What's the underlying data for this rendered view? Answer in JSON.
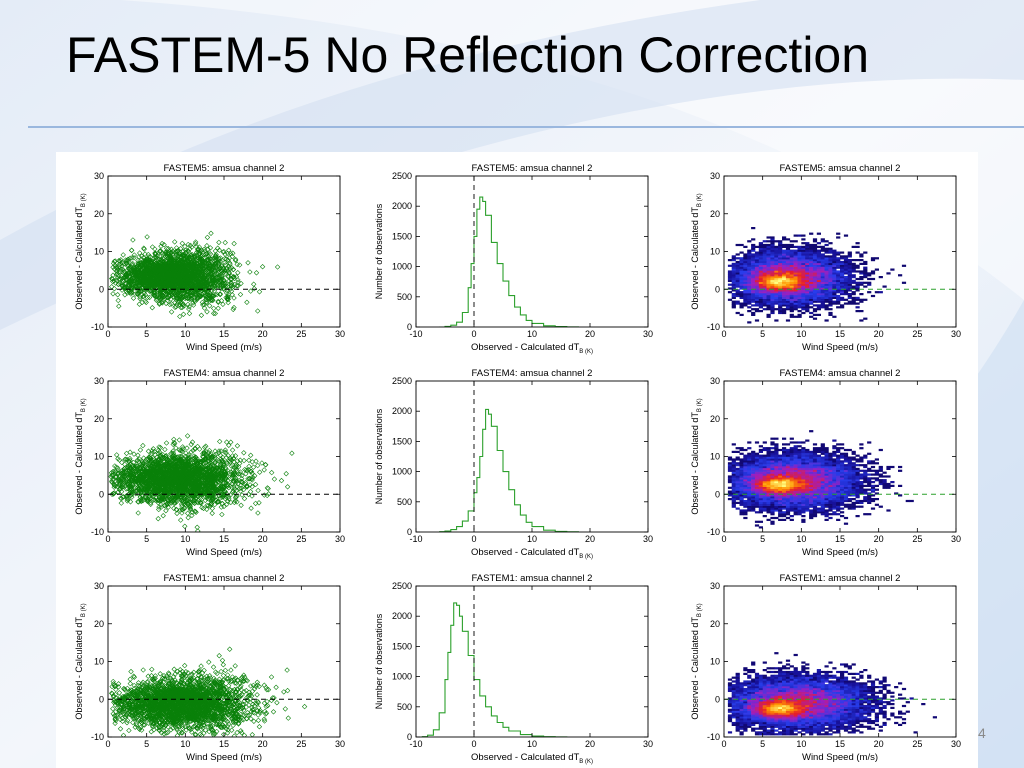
{
  "slide": {
    "title": "FASTEM-5 No Reflection Correction",
    "page_number": "4"
  },
  "colors": {
    "scatter": "#0a800a",
    "histogram": "#2ca02c",
    "title_rule": "#9ab7de"
  },
  "chart_data": [
    {
      "panel": "scatter",
      "type": "scatter",
      "model": "FASTEM5",
      "title": "FASTEM5: amsua channel 2",
      "xlabel": "Wind Speed (m/s)",
      "ylabel": "Observed - Calculated dT_B (K)",
      "xlim": [
        0,
        30
      ],
      "ylim": [
        -10,
        30
      ],
      "xticks": [
        0,
        5,
        10,
        15,
        20,
        25,
        30
      ],
      "yticks": [
        -10,
        0,
        10,
        20,
        30
      ],
      "reference_line_y": 0,
      "cloud": {
        "x_mean": 8.5,
        "x_sd": 3.6,
        "y_mean": 3.5,
        "y_sd": 3.4,
        "x_max": 23,
        "points": 2600
      }
    },
    {
      "panel": "histogram",
      "type": "line",
      "model": "FASTEM5",
      "title": "FASTEM5: amsua channel 2",
      "xlabel": "Observed - Calculated dT_B (K)",
      "ylabel": "Number of observations",
      "xlim": [
        -10,
        30
      ],
      "ylim": [
        0,
        2500
      ],
      "xticks": [
        -10,
        0,
        10,
        20,
        30
      ],
      "yticks": [
        0,
        500,
        1000,
        1500,
        2000,
        2500
      ],
      "reference_line_x": 0,
      "x": [
        -6,
        -5,
        -4,
        -3,
        -2,
        -1,
        -0.5,
        0,
        0.5,
        1,
        1.5,
        2,
        3,
        4,
        5,
        6,
        7,
        8,
        9,
        10,
        12,
        14,
        16,
        18
      ],
      "y": [
        0,
        10,
        30,
        80,
        240,
        650,
        1050,
        1500,
        1950,
        2150,
        2080,
        1850,
        1400,
        1050,
        760,
        520,
        330,
        200,
        110,
        60,
        20,
        8,
        2,
        0
      ]
    },
    {
      "panel": "density",
      "type": "heatmap",
      "model": "FASTEM5",
      "title": "FASTEM5: amsua channel 2",
      "xlabel": "Wind Speed (m/s)",
      "ylabel": "Observed - Calculated dT_B (K)",
      "xlim": [
        0,
        30
      ],
      "ylim": [
        -10,
        30
      ],
      "xticks": [
        0,
        5,
        10,
        15,
        20,
        25,
        30
      ],
      "yticks": [
        -10,
        0,
        10,
        20,
        30
      ],
      "reference_line_y": 0,
      "cloud": {
        "x_mean": 8.5,
        "x_sd": 3.6,
        "y_mean": 3.0,
        "y_sd": 3.4,
        "peak_x": 7,
        "peak_y": 2,
        "x_max": 24
      }
    },
    {
      "panel": "scatter",
      "type": "scatter",
      "model": "FASTEM4",
      "title": "FASTEM4: amsua channel 2",
      "xlabel": "Wind Speed (m/s)",
      "ylabel": "Observed - Calculated dT_B (K)",
      "xlim": [
        0,
        30
      ],
      "ylim": [
        -10,
        30
      ],
      "xticks": [
        0,
        5,
        10,
        15,
        20,
        25,
        30
      ],
      "yticks": [
        -10,
        0,
        10,
        20,
        30
      ],
      "reference_line_y": 0,
      "cloud": {
        "x_mean": 9.0,
        "x_sd": 4.2,
        "y_mean": 4.0,
        "y_sd": 3.5,
        "x_max": 26,
        "points": 2600
      }
    },
    {
      "panel": "histogram",
      "type": "line",
      "model": "FASTEM4",
      "title": "FASTEM4: amsua channel 2",
      "xlabel": "Observed - Calculated dT_B (K)",
      "ylabel": "Number of observations",
      "xlim": [
        -10,
        30
      ],
      "ylim": [
        0,
        2500
      ],
      "xticks": [
        -10,
        0,
        10,
        20,
        30
      ],
      "yticks": [
        0,
        500,
        1000,
        1500,
        2000,
        2500
      ],
      "reference_line_x": 0,
      "x": [
        -6,
        -5,
        -4,
        -3,
        -2,
        -1,
        0,
        0.5,
        1,
        1.5,
        2,
        2.5,
        3,
        4,
        5,
        6,
        7,
        8,
        9,
        10,
        12,
        14,
        16,
        18
      ],
      "y": [
        5,
        15,
        40,
        90,
        180,
        350,
        650,
        900,
        1250,
        1700,
        2030,
        1950,
        1750,
        1350,
        1000,
        700,
        450,
        280,
        160,
        90,
        30,
        10,
        3,
        0
      ]
    },
    {
      "panel": "density",
      "type": "heatmap",
      "model": "FASTEM4",
      "title": "FASTEM4: amsua channel 2",
      "xlabel": "Wind Speed (m/s)",
      "ylabel": "Observed - Calculated dT_B (K)",
      "xlim": [
        0,
        30
      ],
      "ylim": [
        -10,
        30
      ],
      "xticks": [
        0,
        5,
        10,
        15,
        20,
        25,
        30
      ],
      "yticks": [
        -10,
        0,
        10,
        20,
        30
      ],
      "reference_line_y": 0,
      "cloud": {
        "x_mean": 9.0,
        "x_sd": 4.2,
        "y_mean": 3.5,
        "y_sd": 3.5,
        "peak_x": 7,
        "peak_y": 2.5,
        "x_max": 26
      }
    },
    {
      "panel": "scatter",
      "type": "scatter",
      "model": "FASTEM1",
      "title": "FASTEM1: amsua channel 2",
      "xlabel": "Wind Speed (m/s)",
      "ylabel": "Observed - Calculated dT_B (K)",
      "xlim": [
        0,
        30
      ],
      "ylim": [
        -10,
        30
      ],
      "xticks": [
        0,
        5,
        10,
        15,
        20,
        25,
        30
      ],
      "yticks": [
        -10,
        0,
        10,
        20,
        30
      ],
      "reference_line_y": 0,
      "cloud": {
        "x_mean": 9.5,
        "x_sd": 4.5,
        "y_mean": -1.0,
        "y_sd": 3.6,
        "x_max": 28,
        "points": 2600
      }
    },
    {
      "panel": "histogram",
      "type": "line",
      "model": "FASTEM1",
      "title": "FASTEM1: amsua channel 2",
      "xlabel": "Observed - Calculated dT_B (K)",
      "ylabel": "Number of observations",
      "xlim": [
        -10,
        30
      ],
      "ylim": [
        0,
        2500
      ],
      "xticks": [
        -10,
        0,
        10,
        20,
        30
      ],
      "yticks": [
        0,
        500,
        1000,
        1500,
        2000,
        2500
      ],
      "reference_line_x": 0,
      "x": [
        -9,
        -8,
        -7,
        -6,
        -5,
        -4.5,
        -4,
        -3.5,
        -3,
        -2.5,
        -2,
        -1,
        0,
        1,
        2,
        3,
        4,
        5,
        6,
        8,
        10,
        12,
        14,
        16
      ],
      "y": [
        5,
        30,
        120,
        400,
        950,
        1400,
        1850,
        2220,
        2180,
        2000,
        1750,
        1350,
        950,
        680,
        500,
        350,
        240,
        160,
        100,
        40,
        15,
        5,
        2,
        0
      ]
    },
    {
      "panel": "density",
      "type": "heatmap",
      "model": "FASTEM1",
      "title": "FASTEM1: amsua channel 2",
      "xlabel": "Wind Speed (m/s)",
      "ylabel": "Observed - Calculated dT_B (K)",
      "xlim": [
        0,
        30
      ],
      "ylim": [
        -10,
        30
      ],
      "xticks": [
        0,
        5,
        10,
        15,
        20,
        25,
        30
      ],
      "yticks": [
        -10,
        0,
        10,
        20,
        30
      ],
      "reference_line_y": 0,
      "cloud": {
        "x_mean": 9.5,
        "x_sd": 4.5,
        "y_mean": -1.0,
        "y_sd": 3.4,
        "peak_x": 7,
        "peak_y": -2.5,
        "x_max": 28
      }
    }
  ]
}
